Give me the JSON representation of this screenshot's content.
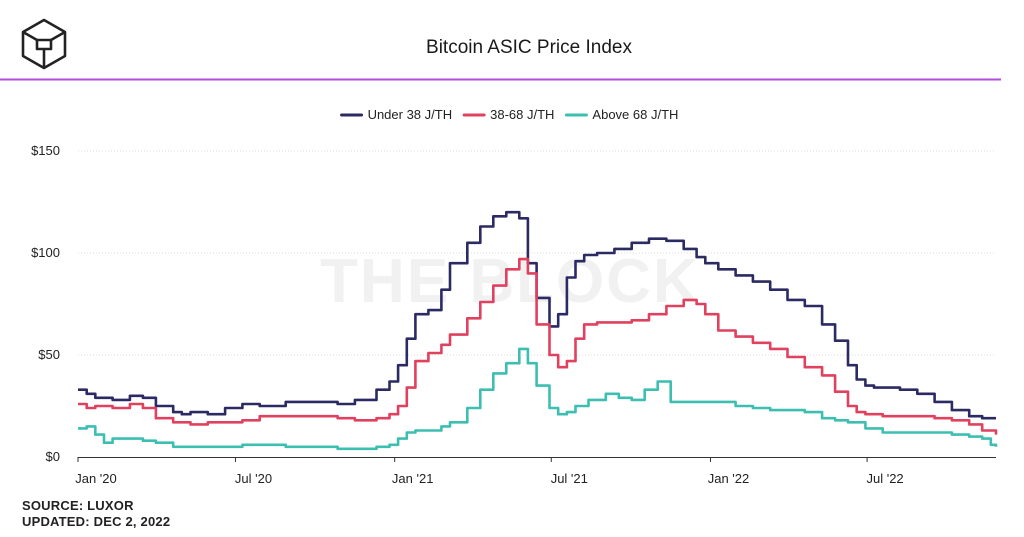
{
  "header": {
    "title": "Bitcoin ASIC Price Index",
    "logo": "the-block-cube-logo",
    "divider_color": "#b44bdf"
  },
  "watermark": "THE BLOCK",
  "footer": {
    "source": "SOURCE: LUXOR",
    "updated": "UPDATED: DEC 2, 2022"
  },
  "chart_data": {
    "type": "line",
    "title": "Bitcoin ASIC Price Index",
    "xlabel": "",
    "ylabel": "",
    "x_range": [
      "2020-01-01",
      "2022-12-02"
    ],
    "ylim": [
      0,
      150
    ],
    "y_ticks": [
      0,
      50,
      100,
      150
    ],
    "y_tick_labels": [
      "$0",
      "$50",
      "$100",
      "$150"
    ],
    "x_tick_positions": [
      0,
      182,
      366,
      547,
      731,
      912
    ],
    "x_tick_labels": [
      "Jan '20",
      "Jul '20",
      "Jan '21",
      "Jul '21",
      "Jan '22",
      "Jul '22"
    ],
    "grid": true,
    "legend": "top-center",
    "series": [
      {
        "name": "Under 38 J/TH",
        "color": "#2b2a63",
        "x": [
          0,
          10,
          20,
          40,
          60,
          75,
          90,
          110,
          120,
          130,
          150,
          170,
          190,
          210,
          240,
          270,
          300,
          320,
          345,
          360,
          370,
          380,
          390,
          405,
          420,
          430,
          450,
          465,
          480,
          495,
          510,
          520,
          530,
          545,
          555,
          565,
          575,
          585,
          600,
          620,
          640,
          660,
          680,
          700,
          715,
          725,
          740,
          760,
          780,
          800,
          820,
          840,
          860,
          875,
          890,
          900,
          910,
          920,
          930,
          950,
          970,
          990,
          1010,
          1030,
          1045,
          1061
        ],
        "values": [
          33,
          31,
          29,
          28,
          30,
          29,
          25,
          22,
          21,
          22,
          21,
          24,
          26,
          25,
          27,
          27,
          26,
          28,
          33,
          37,
          45,
          58,
          70,
          72,
          82,
          95,
          105,
          113,
          118,
          120,
          117,
          95,
          78,
          64,
          70,
          88,
          96,
          99,
          100,
          102,
          105,
          107,
          106,
          102,
          98,
          95,
          92,
          89,
          86,
          82,
          77,
          74,
          65,
          57,
          45,
          38,
          35,
          34,
          34,
          33,
          31,
          27,
          23,
          20,
          19,
          19
        ]
      },
      {
        "name": "38-68 J/TH",
        "color": "#e0415f",
        "x": [
          0,
          10,
          20,
          40,
          60,
          75,
          90,
          110,
          130,
          150,
          170,
          190,
          210,
          240,
          270,
          300,
          320,
          345,
          360,
          370,
          380,
          390,
          405,
          420,
          430,
          450,
          465,
          480,
          495,
          510,
          520,
          530,
          545,
          555,
          565,
          575,
          585,
          600,
          620,
          640,
          660,
          680,
          700,
          715,
          725,
          740,
          760,
          780,
          800,
          820,
          840,
          860,
          875,
          890,
          900,
          910,
          920,
          930,
          950,
          970,
          990,
          1010,
          1030,
          1045,
          1061
        ],
        "values": [
          26,
          24,
          25,
          24,
          26,
          24,
          19,
          17,
          16,
          17,
          17,
          18,
          20,
          20,
          20,
          19,
          18,
          19,
          21,
          25,
          34,
          47,
          51,
          55,
          60,
          68,
          76,
          84,
          92,
          97,
          90,
          65,
          50,
          44,
          47,
          58,
          65,
          66,
          66,
          67,
          70,
          74,
          77,
          75,
          70,
          62,
          59,
          56,
          53,
          49,
          44,
          40,
          32,
          25,
          22,
          21,
          21,
          20,
          20,
          20,
          19,
          18,
          16,
          13,
          11
        ]
      },
      {
        "name": "Above 68 J/TH",
        "color": "#3cbfb0",
        "x": [
          0,
          10,
          20,
          30,
          40,
          60,
          75,
          90,
          110,
          130,
          150,
          170,
          190,
          210,
          240,
          270,
          300,
          320,
          345,
          360,
          370,
          380,
          390,
          405,
          420,
          430,
          450,
          465,
          480,
          495,
          510,
          520,
          530,
          545,
          555,
          565,
          575,
          590,
          610,
          625,
          640,
          655,
          670,
          685,
          700,
          720,
          740,
          760,
          780,
          800,
          820,
          840,
          860,
          875,
          890,
          910,
          930,
          950,
          970,
          990,
          1010,
          1030,
          1045,
          1055,
          1061
        ],
        "values": [
          14,
          15,
          11,
          7,
          9,
          9,
          8,
          7,
          5,
          5,
          5,
          5,
          6,
          6,
          5,
          5,
          4,
          4,
          5,
          6,
          9,
          12,
          13,
          13,
          15,
          17,
          24,
          33,
          41,
          46,
          53,
          46,
          35,
          24,
          21,
          22,
          25,
          28,
          31,
          29,
          28,
          33,
          37,
          27,
          27,
          27,
          27,
          25,
          24,
          23,
          23,
          22,
          19,
          18,
          17,
          14,
          12,
          12,
          12,
          12,
          11,
          10,
          9,
          6,
          5
        ]
      }
    ]
  }
}
